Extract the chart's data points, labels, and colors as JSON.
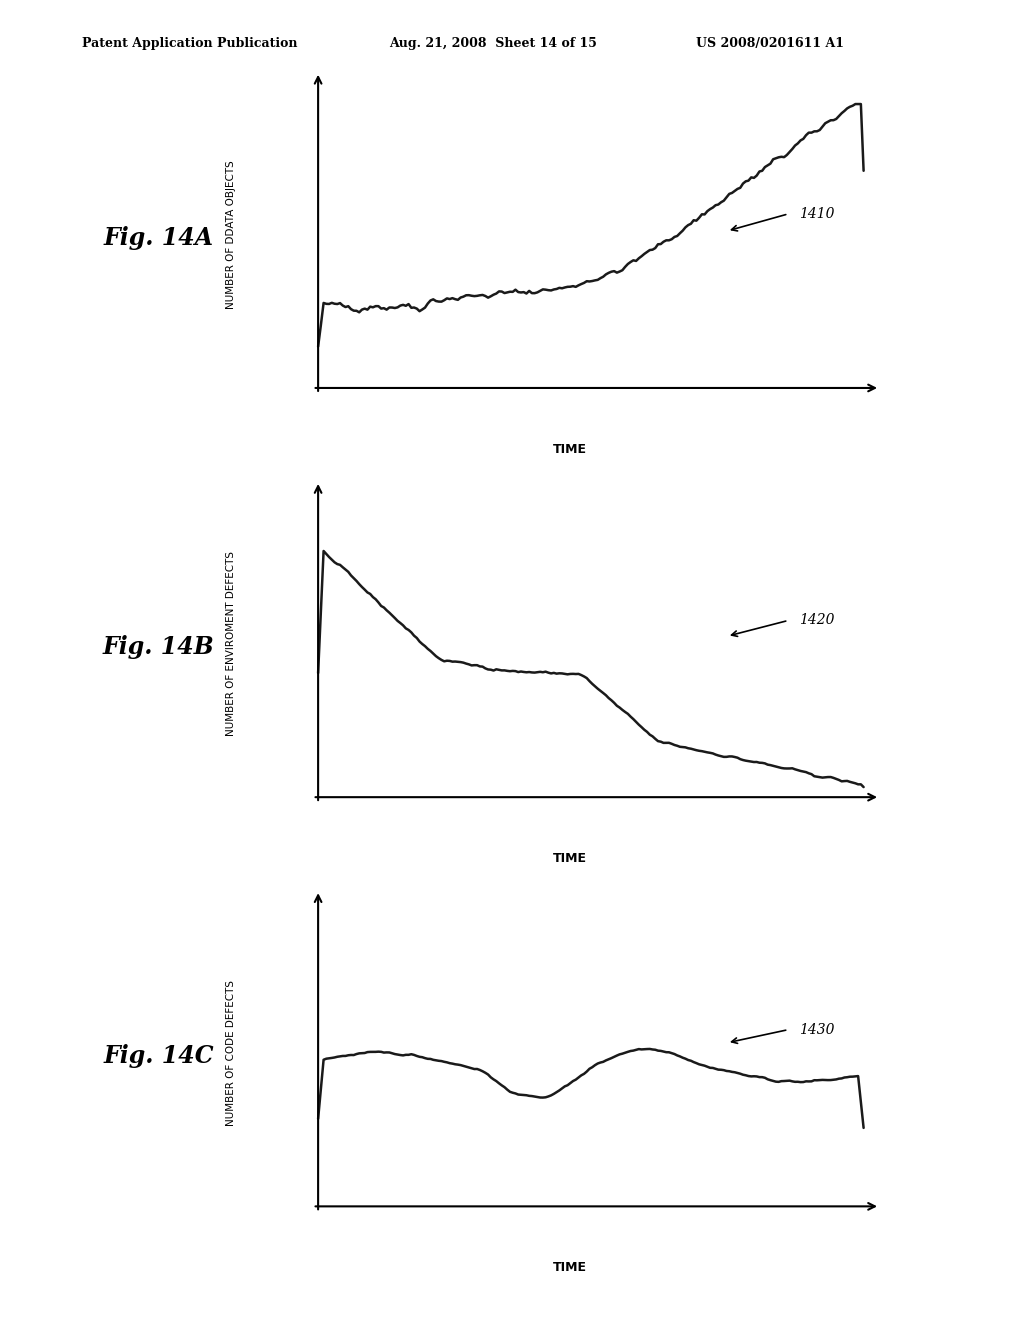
{
  "header_left": "Patent Application Publication",
  "header_mid": "Aug. 21, 2008  Sheet 14 of 15",
  "header_right": "US 2008/0201611 A1",
  "fig_labels": [
    "Fig. 14A",
    "Fig. 14B",
    "Fig. 14C"
  ],
  "ref_labels": [
    "1410",
    "1420",
    "1430"
  ],
  "ylabels": [
    "NUMBER OF DDATA OBJECTS",
    "NUMBER OF ENVIROMENT DEFECTS",
    "NUMBER OF CODE DEFECTS"
  ],
  "xlabel": "TIME",
  "background": "#ffffff",
  "line_color": "#1a1a1a"
}
